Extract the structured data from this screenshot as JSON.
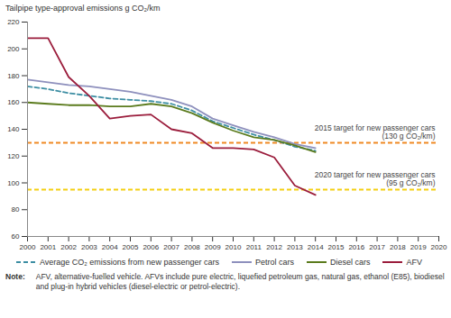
{
  "chart_data": {
    "type": "line",
    "y_label": "Tailpipe type-approval emissions g CO₂/km",
    "x": [
      2000,
      2001,
      2002,
      2003,
      2004,
      2005,
      2006,
      2007,
      2008,
      2009,
      2010,
      2011,
      2012,
      2013,
      2014,
      2015,
      2016,
      2017,
      2018,
      2019,
      2020
    ],
    "xlim": [
      2000,
      2020
    ],
    "xticks": [
      2000,
      2001,
      2002,
      2003,
      2004,
      2005,
      2006,
      2007,
      2008,
      2009,
      2010,
      2011,
      2012,
      2013,
      2014,
      2015,
      2016,
      2017,
      2018,
      2019,
      2020
    ],
    "ylim": [
      60,
      220
    ],
    "yticks": [
      60,
      80,
      100,
      120,
      140,
      160,
      180,
      200,
      220
    ],
    "grid": false,
    "legend": "bottom",
    "series": [
      {
        "name": "Average CO₂ emissions from new passenger cars",
        "color": "#3d8ea3",
        "line_style": "dashed",
        "values": [
          172,
          170,
          167,
          165,
          163,
          162,
          161,
          159,
          154,
          146,
          141,
          136,
          132,
          127,
          124,
          null,
          null,
          null,
          null,
          null,
          null
        ]
      },
      {
        "name": "Petrol cars",
        "color": "#8e90bd",
        "line_style": "solid",
        "values": [
          177,
          175,
          173,
          172,
          170,
          168,
          165,
          162,
          157,
          148,
          143,
          138,
          134,
          129,
          126,
          null,
          null,
          null,
          null,
          null,
          null
        ]
      },
      {
        "name": "Diesel cars",
        "color": "#5b7b1d",
        "line_style": "solid",
        "values": [
          160,
          159,
          158,
          158,
          157,
          157,
          159,
          157,
          152,
          145,
          139,
          134,
          132,
          128,
          123,
          null,
          null,
          null,
          null,
          null,
          null
        ]
      },
      {
        "name": "AFV",
        "color": "#9b1d3c",
        "line_style": "solid",
        "values": [
          208,
          208,
          179,
          165,
          148,
          150,
          151,
          140,
          137,
          126,
          126,
          125,
          119,
          98,
          91,
          null,
          null,
          null,
          null,
          null,
          null
        ]
      }
    ],
    "reference_lines": [
      {
        "value": 130,
        "color": "#f08a24",
        "line_style": "dashed",
        "label": [
          "2015 target for new passenger cars",
          "(130 g CO₂/km)"
        ]
      },
      {
        "value": 95,
        "color": "#f4cf12",
        "line_style": "dashed",
        "label": [
          "2020 target for new passenger cars",
          "(95 g CO₂/km)"
        ]
      }
    ],
    "note_heading": "Note:",
    "note": "AFV, alternative-fuelled vehicle. AFVs include pure electric, liquefied petroleum gas, natural gas, ethanol (E85), biodiesel and plug-in hybrid vehicles (diesel-electric or petrol-electric)."
  }
}
